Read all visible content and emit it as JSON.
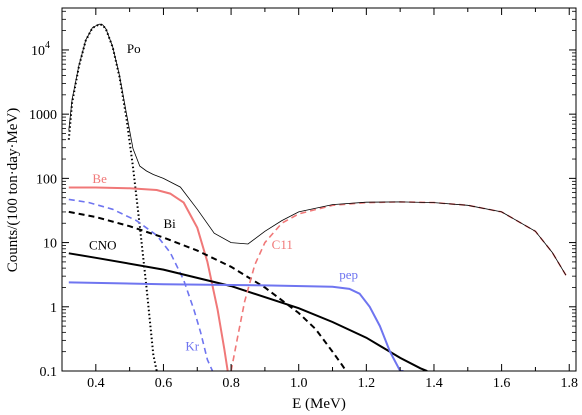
{
  "chart_data": {
    "type": "line",
    "xlabel": "E (MeV)",
    "ylabel": "Counts/(100 ton·day·MeV)",
    "xlim": [
      0.3,
      1.82
    ],
    "ylim": [
      0.1,
      45000
    ],
    "yscale": "log",
    "grid": false,
    "x_ticks": [
      {
        "value": 0.4,
        "label": "0.4"
      },
      {
        "value": 0.6,
        "label": "0.6"
      },
      {
        "value": 0.8,
        "label": "0.8"
      },
      {
        "value": 1.0,
        "label": "1.0"
      },
      {
        "value": 1.2,
        "label": "1.2"
      },
      {
        "value": 1.4,
        "label": "1.4"
      },
      {
        "value": 1.6,
        "label": "1.6"
      },
      {
        "value": 1.8,
        "label": "1.8"
      }
    ],
    "y_ticks": [
      {
        "value": 0.1,
        "label": "0.1"
      },
      {
        "value": 1,
        "label": "1"
      },
      {
        "value": 10,
        "label": "10"
      },
      {
        "value": 100,
        "label": "100"
      },
      {
        "value": 1000,
        "label": "1000"
      },
      {
        "value": 10000,
        "label": "10",
        "sup": "4"
      }
    ],
    "series": [
      {
        "name": "Po",
        "color": "#000000",
        "dash": "dotted",
        "width": 2,
        "x": [
          0.32,
          0.33,
          0.35,
          0.37,
          0.39,
          0.41,
          0.42,
          0.43,
          0.45,
          0.47,
          0.49,
          0.51,
          0.53,
          0.55,
          0.57,
          0.58
        ],
        "y": [
          400,
          1500,
          5500,
          14000,
          22000,
          25000,
          24500,
          21000,
          11000,
          3800,
          900,
          150,
          18,
          2,
          0.18,
          0.1
        ]
      },
      {
        "name": "Be",
        "color": "#f07878",
        "dash": "solid",
        "width": 2,
        "x": [
          0.32,
          0.4,
          0.5,
          0.58,
          0.62,
          0.66,
          0.7,
          0.73,
          0.76,
          0.78,
          0.79
        ],
        "y": [
          72,
          72,
          70,
          66,
          58,
          42,
          17,
          5,
          0.9,
          0.22,
          0.1
        ]
      },
      {
        "name": "Kr",
        "color": "#6f75f0",
        "dash": "dashed",
        "width": 1.6,
        "x": [
          0.32,
          0.38,
          0.45,
          0.52,
          0.58,
          0.62,
          0.66,
          0.69,
          0.71,
          0.73,
          0.745
        ],
        "y": [
          47,
          42,
          33,
          22,
          13,
          7,
          2.6,
          0.9,
          0.4,
          0.15,
          0.1
        ]
      },
      {
        "name": "Bi",
        "color": "#000000",
        "dash": "dashed",
        "width": 2,
        "x": [
          0.32,
          0.4,
          0.5,
          0.6,
          0.7,
          0.8,
          0.9,
          1.0,
          1.05,
          1.1,
          1.13,
          1.14
        ],
        "y": [
          30,
          25,
          18,
          12,
          7.5,
          4.2,
          2.0,
          0.8,
          0.45,
          0.2,
          0.12,
          0.1
        ]
      },
      {
        "name": "CNO",
        "color": "#000000",
        "dash": "solid",
        "width": 2,
        "x": [
          0.32,
          0.4,
          0.6,
          0.8,
          1.0,
          1.1,
          1.2,
          1.3,
          1.36,
          1.38
        ],
        "y": [
          6.8,
          5.8,
          3.8,
          2.1,
          0.95,
          0.58,
          0.33,
          0.16,
          0.11,
          0.1
        ]
      },
      {
        "name": "pep",
        "color": "#6f75f0",
        "dash": "solid",
        "width": 2,
        "x": [
          0.32,
          0.6,
          0.9,
          1.1,
          1.15,
          1.18,
          1.21,
          1.24,
          1.27,
          1.3,
          1.31
        ],
        "y": [
          2.4,
          2.25,
          2.15,
          2.05,
          1.9,
          1.6,
          1.0,
          0.5,
          0.2,
          0.1,
          0.1
        ]
      },
      {
        "name": "C11",
        "color": "#f07878",
        "dash": "dashed",
        "width": 1.6,
        "x": [
          0.8,
          0.82,
          0.84,
          0.87,
          0.9,
          0.95,
          1.0,
          1.1,
          1.2,
          1.3,
          1.4,
          1.5,
          1.6,
          1.7,
          1.75,
          1.79
        ],
        "y": [
          0.1,
          0.35,
          1.2,
          4.5,
          10,
          20,
          28,
          38,
          42,
          43,
          42,
          38,
          30,
          15,
          7,
          3.1
        ]
      },
      {
        "name": "",
        "color": "#000000",
        "dash": "solid",
        "width": 0.8,
        "x": [
          0.32,
          0.33,
          0.35,
          0.37,
          0.39,
          0.41,
          0.42,
          0.43,
          0.45,
          0.47,
          0.49,
          0.51,
          0.53,
          0.55,
          0.57,
          0.6,
          0.65,
          0.7,
          0.75,
          0.8,
          0.85,
          0.9,
          0.95,
          1.0,
          1.1,
          1.2,
          1.3,
          1.4,
          1.5,
          1.6,
          1.7,
          1.75,
          1.79
        ],
        "y": [
          560,
          1700,
          5700,
          14200,
          22200,
          25200,
          24700,
          21200,
          11200,
          4000,
          1050,
          290,
          155,
          130,
          115,
          100,
          73,
          33,
          14,
          10,
          9.5,
          15,
          22,
          30,
          39,
          42.5,
          43,
          42,
          38,
          30,
          15,
          7,
          3.1
        ]
      }
    ],
    "annotations": [
      {
        "text": "Po",
        "series": "Po",
        "x": 0.492,
        "y": 9000
      },
      {
        "text": "Be",
        "series": "Be",
        "x": 0.39,
        "y": 85
      },
      {
        "text": "Bi",
        "series": "Bi",
        "x": 0.6,
        "y": 17
      },
      {
        "text": "CNO",
        "series": "CNO",
        "x": 0.38,
        "y": 7.8
      },
      {
        "text": "Kr",
        "series": "Kr",
        "x": 0.665,
        "y": 0.21
      },
      {
        "text": "C11",
        "series": "C11",
        "x": 0.92,
        "y": 8
      },
      {
        "text": "pep",
        "series": "pep",
        "x": 1.12,
        "y": 2.7
      }
    ]
  }
}
